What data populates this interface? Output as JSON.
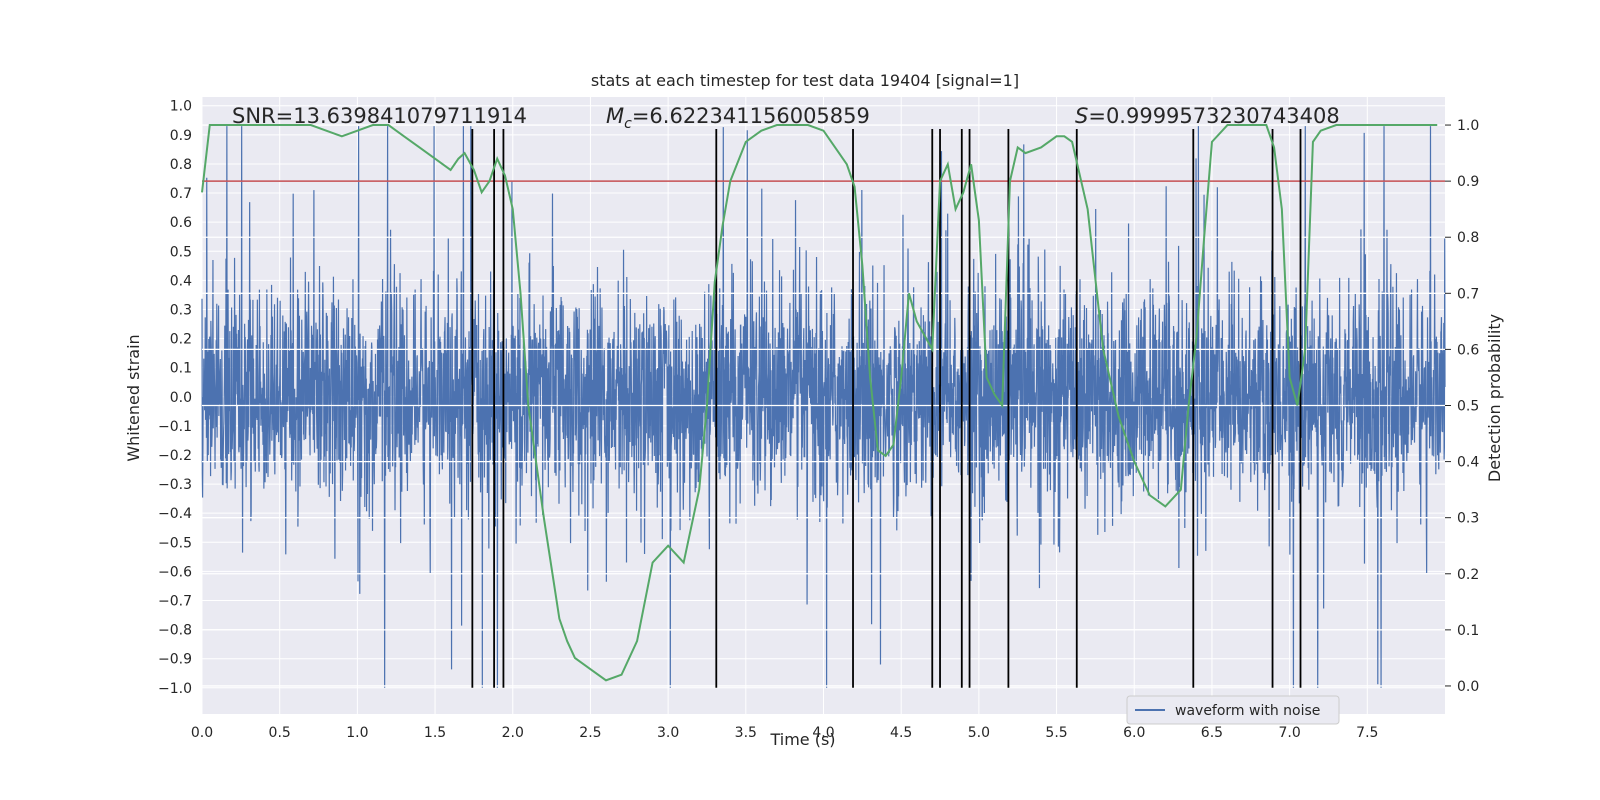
{
  "chart_data": {
    "type": "line",
    "title": "stats at each timestep for test data 19404 [signal=1]",
    "xlabel": "Time (s)",
    "ylabel": "Whitened strain",
    "ylabel_right": "Detection probability",
    "xlim": [
      0,
      8.0
    ],
    "ylim": [
      -1.09,
      1.03
    ],
    "ylim_right": [
      -0.05,
      1.05
    ],
    "x_ticks": [
      0.0,
      0.5,
      1.0,
      1.5,
      2.0,
      2.5,
      3.0,
      3.5,
      4.0,
      4.5,
      5.0,
      5.5,
      6.0,
      6.5,
      7.0,
      7.5
    ],
    "x_tick_labels": [
      "0.0",
      "0.5",
      "1.0",
      "1.5",
      "2.0",
      "2.5",
      "3.0",
      "3.5",
      "4.0",
      "4.5",
      "5.0",
      "5.5",
      "6.0",
      "6.5",
      "7.0",
      "7.5"
    ],
    "y_ticks": [
      1.0,
      0.9,
      0.8,
      0.7,
      0.6,
      0.5,
      0.4,
      0.3,
      0.2,
      0.1,
      0.0,
      -0.1,
      -0.2,
      -0.3,
      -0.4,
      -0.5,
      -0.6,
      -0.7,
      -0.8,
      -0.9,
      -1.0
    ],
    "y_tick_labels": [
      "1.0",
      "0.9",
      "0.8",
      "0.7",
      "0.6",
      "0.5",
      "0.4",
      "0.3",
      "0.2",
      "0.1",
      "0.0",
      "−0.1",
      "−0.2",
      "−0.3",
      "−0.4",
      "−0.5",
      "−0.6",
      "−0.7",
      "−0.8",
      "−0.9",
      "−1.0"
    ],
    "y_right_ticks": [
      1.0,
      0.9,
      0.8,
      0.7,
      0.6,
      0.5,
      0.4,
      0.3,
      0.2,
      0.1,
      0.0
    ],
    "y_right_tick_labels": [
      "1.0",
      "0.9",
      "0.8",
      "0.7",
      "0.6",
      "0.5",
      "0.4",
      "0.3",
      "0.2",
      "0.1",
      "0.0"
    ],
    "grid": true,
    "legend_position": "lower-right",
    "legend_entries": [
      "waveform with noise"
    ],
    "annotations": {
      "snr": "SNR=13.639841079711914",
      "mc_symbol": "M",
      "mc_subscript": "c",
      "mc_value": "=6.622341156005859",
      "s_symbol": "S",
      "s_value": "=0.9999573230743408"
    },
    "threshold_right": 0.9,
    "vertical_lines": [
      1.74,
      1.88,
      1.94,
      3.31,
      4.19,
      4.7,
      4.75,
      4.89,
      4.94,
      5.19,
      5.63,
      6.38,
      6.89,
      7.07
    ],
    "vertical_line_range": [
      -1.0,
      0.92
    ],
    "waveform": {
      "name": "waveform with noise",
      "duration": 8.0,
      "base_amplitude": 0.36,
      "noise_seed": 19404
    },
    "probability_series": {
      "x": [
        0.0,
        0.05,
        0.1,
        0.2,
        0.3,
        0.5,
        0.7,
        0.8,
        0.9,
        1.0,
        1.1,
        1.2,
        1.3,
        1.4,
        1.45,
        1.55,
        1.6,
        1.65,
        1.69,
        1.75,
        1.8,
        1.85,
        1.9,
        1.95,
        2.0,
        2.05,
        2.1,
        2.2,
        2.3,
        2.35,
        2.4,
        2.5,
        2.6,
        2.7,
        2.8,
        2.9,
        3.0,
        3.1,
        3.2,
        3.25,
        3.3,
        3.35,
        3.4,
        3.5,
        3.6,
        3.7,
        3.8,
        3.9,
        4.0,
        4.1,
        4.15,
        4.2,
        4.25,
        4.3,
        4.35,
        4.4,
        4.45,
        4.5,
        4.55,
        4.6,
        4.7,
        4.75,
        4.8,
        4.85,
        4.9,
        4.95,
        5.0,
        5.05,
        5.1,
        5.15,
        5.2,
        5.25,
        5.3,
        5.4,
        5.5,
        5.55,
        5.6,
        5.7,
        5.8,
        5.9,
        6.0,
        6.1,
        6.15,
        6.2,
        6.3,
        6.35,
        6.4,
        6.45,
        6.5,
        6.6,
        6.7,
        6.8,
        6.85,
        6.9,
        6.95,
        7.0,
        7.05,
        7.1,
        7.15,
        7.2,
        7.3,
        7.5,
        7.7,
        7.9,
        7.95
      ],
      "y": [
        0.88,
        1.0,
        1.0,
        1.0,
        1.0,
        1.0,
        1.0,
        0.99,
        0.98,
        0.99,
        1.0,
        1.0,
        0.98,
        0.96,
        0.95,
        0.93,
        0.92,
        0.94,
        0.95,
        0.92,
        0.88,
        0.9,
        0.94,
        0.91,
        0.85,
        0.7,
        0.5,
        0.3,
        0.12,
        0.08,
        0.05,
        0.03,
        0.01,
        0.02,
        0.08,
        0.22,
        0.25,
        0.22,
        0.35,
        0.5,
        0.72,
        0.82,
        0.9,
        0.97,
        0.99,
        1.0,
        1.0,
        1.0,
        0.99,
        0.95,
        0.93,
        0.89,
        0.75,
        0.55,
        0.42,
        0.41,
        0.43,
        0.55,
        0.7,
        0.65,
        0.6,
        0.9,
        0.93,
        0.85,
        0.88,
        0.93,
        0.83,
        0.55,
        0.52,
        0.5,
        0.9,
        0.96,
        0.95,
        0.96,
        0.98,
        0.98,
        0.97,
        0.85,
        0.6,
        0.48,
        0.4,
        0.34,
        0.33,
        0.32,
        0.35,
        0.5,
        0.62,
        0.8,
        0.97,
        1.0,
        1.0,
        1.0,
        1.0,
        0.96,
        0.85,
        0.55,
        0.5,
        0.6,
        0.97,
        0.99,
        1.0,
        1.0,
        1.0,
        1.0,
        1.0
      ]
    },
    "colors": {
      "waveform": "#4c72b0",
      "probability": "#55a868",
      "threshold": "#c44e52",
      "vertical_lines": "#000000",
      "plot_background": "#eaeaf2",
      "grid": "#ffffff",
      "page_background": "#ffffff"
    }
  }
}
